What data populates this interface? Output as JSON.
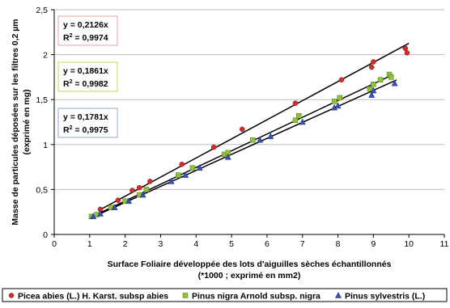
{
  "chart_data": {
    "type": "scatter",
    "xlabel_lines": [
      "Surface Foliaire développée des lots d'aiguilles sèches échantillonnés",
      "(*1000 ; exprimé en mm2)"
    ],
    "ylabel_lines": [
      "Masse de particules déposées sur les filtres 0,2 µm",
      "(exprimé en mg)"
    ],
    "xlim": [
      0,
      11
    ],
    "ylim": [
      0,
      2.5
    ],
    "x_ticks": [
      "0",
      "1",
      "2",
      "3",
      "4",
      "5",
      "6",
      "7",
      "8",
      "9",
      "10",
      "11"
    ],
    "y_ticks": [
      "0",
      "0,5",
      "1",
      "1,5",
      "2",
      "2,5"
    ],
    "grid": "horizontal",
    "legend_position": "bottom",
    "series": [
      {
        "name": "Picea abies (L.) H. Karst. subsp abies",
        "color": "#d62b2b",
        "marker": "circle",
        "equation": "y = 0,2126x",
        "r2_prefix": "R",
        "r2_value": "= 0,9974",
        "box_border": "#e8a0a0",
        "slope": 0.2126,
        "points": [
          [
            1.3,
            0.28
          ],
          [
            1.8,
            0.38
          ],
          [
            2.2,
            0.49
          ],
          [
            2.4,
            0.52
          ],
          [
            2.7,
            0.59
          ],
          [
            3.6,
            0.78
          ],
          [
            4.5,
            0.97
          ],
          [
            5.3,
            1.17
          ],
          [
            6.8,
            1.46
          ],
          [
            8.1,
            1.72
          ],
          [
            8.95,
            1.86
          ],
          [
            9.0,
            1.92
          ],
          [
            9.9,
            2.07
          ],
          [
            9.95,
            2.02
          ]
        ]
      },
      {
        "name": "Pinus nigra Arnold subsp. nigra",
        "color": "#8fc13b",
        "marker": "square",
        "equation": "y = 0,1861x",
        "r2_prefix": "R",
        "r2_value": "= 0,9982",
        "box_border": "#c8d64f",
        "slope": 0.1861,
        "points": [
          [
            1.05,
            0.2
          ],
          [
            1.2,
            0.22
          ],
          [
            1.6,
            0.3
          ],
          [
            2.0,
            0.37
          ],
          [
            2.4,
            0.44
          ],
          [
            2.6,
            0.5
          ],
          [
            3.5,
            0.66
          ],
          [
            3.9,
            0.74
          ],
          [
            4.8,
            0.89
          ],
          [
            4.9,
            0.91
          ],
          [
            5.6,
            1.05
          ],
          [
            6.8,
            1.27
          ],
          [
            6.9,
            1.32
          ],
          [
            7.9,
            1.48
          ],
          [
            8.05,
            1.52
          ],
          [
            8.9,
            1.62
          ],
          [
            9.0,
            1.67
          ],
          [
            9.2,
            1.72
          ],
          [
            9.45,
            1.78
          ],
          [
            9.5,
            1.75
          ]
        ]
      },
      {
        "name": "Pinus sylvestris (L.)",
        "color": "#3a52b8",
        "marker": "triangle",
        "equation": "y = 0,1781x",
        "r2_prefix": "R",
        "r2_value": "= 0,9975",
        "box_border": "#8fa8d8",
        "slope": 0.1781,
        "points": [
          [
            1.1,
            0.2
          ],
          [
            1.3,
            0.23
          ],
          [
            1.7,
            0.3
          ],
          [
            2.1,
            0.37
          ],
          [
            2.5,
            0.44
          ],
          [
            3.3,
            0.59
          ],
          [
            3.7,
            0.66
          ],
          [
            4.1,
            0.74
          ],
          [
            4.9,
            0.86
          ],
          [
            5.8,
            1.05
          ],
          [
            6.1,
            1.09
          ],
          [
            7.0,
            1.25
          ],
          [
            7.9,
            1.41
          ],
          [
            8.0,
            1.43
          ],
          [
            9.0,
            1.6
          ],
          [
            8.95,
            1.55
          ],
          [
            9.6,
            1.68
          ]
        ]
      }
    ]
  }
}
